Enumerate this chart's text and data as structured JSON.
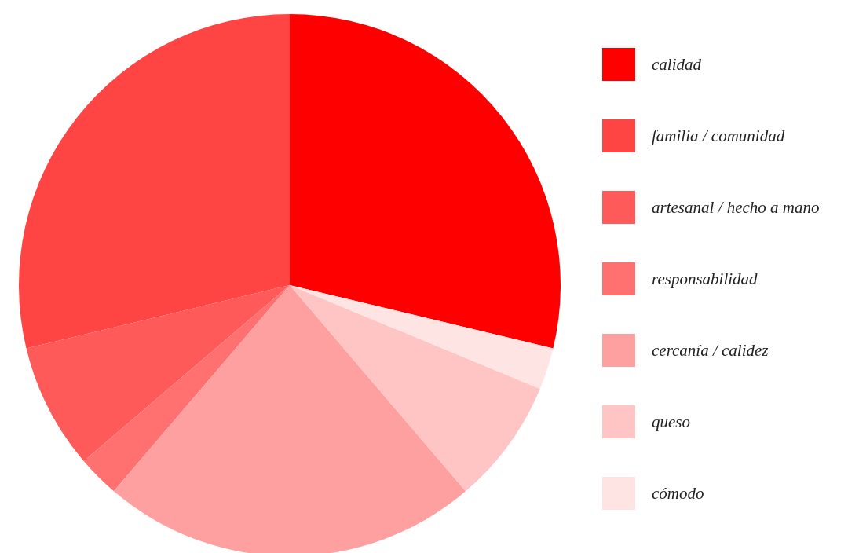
{
  "chart_data": {
    "type": "pie",
    "categories": [
      "calidad",
      "familia / comunidad",
      "artesanal / hecho a mano",
      "responsabilidad",
      "cercanía / calidez",
      "queso",
      "cómodo"
    ],
    "values": [
      28.75,
      28.75,
      7.5,
      2.5,
      22.5,
      7.5,
      2.5
    ],
    "colors": [
      "#ff0000",
      "#ff4444",
      "#ff5a5a",
      "#ff7070",
      "#ffa0a0",
      "#ffc4c4",
      "#ffe4e4"
    ],
    "legend": "right"
  }
}
